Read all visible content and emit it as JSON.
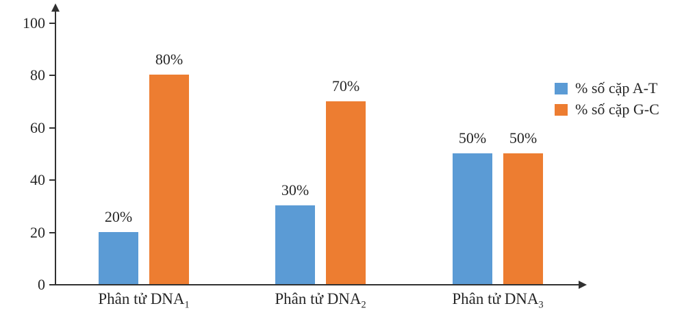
{
  "chart_data": {
    "type": "bar",
    "title": "",
    "xlabel": "",
    "ylabel": "",
    "ylim": [
      0,
      100
    ],
    "y_ticks": [
      0,
      20,
      40,
      60,
      80,
      100
    ],
    "grid": false,
    "legend_position": "right",
    "categories": [
      {
        "label": "Phân tử DNA",
        "sub": "1"
      },
      {
        "label": "Phân tử DNA",
        "sub": "2"
      },
      {
        "label": "Phân tử DNA",
        "sub": "3"
      }
    ],
    "series": [
      {
        "name": "% số cặp A-T",
        "color": "#5B9BD5",
        "values": [
          20,
          30,
          50
        ],
        "value_labels": [
          "20%",
          "30%",
          "50%"
        ]
      },
      {
        "name": "% số cặp G-C",
        "color": "#ED7D31",
        "values": [
          80,
          70,
          50
        ],
        "value_labels": [
          "80%",
          "70%",
          "50%"
        ]
      }
    ]
  },
  "colors": {
    "axis": "#303030",
    "text": "#262626",
    "background": "#ffffff",
    "series_at": "#5B9BD5",
    "series_gc": "#ED7D31"
  }
}
